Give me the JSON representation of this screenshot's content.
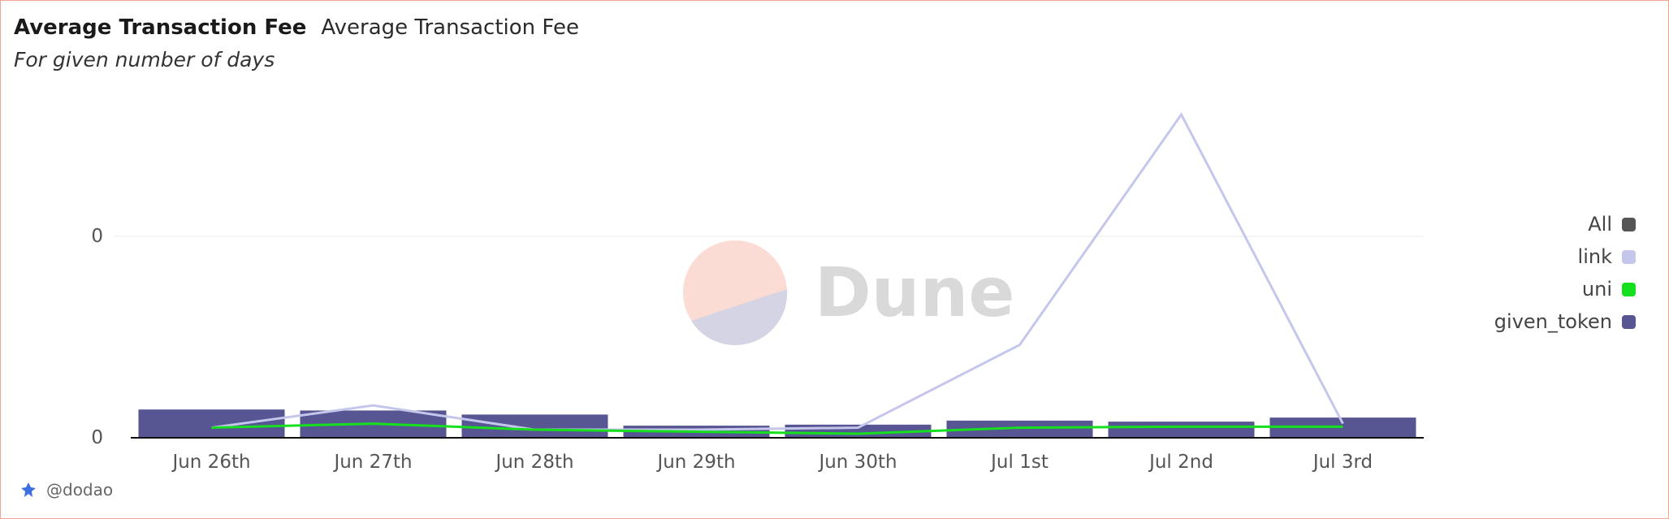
{
  "header": {
    "title": "Average Transaction Fee",
    "title_secondary": "Average Transaction Fee",
    "subtitle": "For given number of days"
  },
  "footer": {
    "handle": "@dodao"
  },
  "watermark": {
    "text": "Dune"
  },
  "legend": [
    {
      "label": "All",
      "color": "#555555"
    },
    {
      "label": "link",
      "color": "#c5c6ec"
    },
    {
      "label": "uni",
      "color": "#16e01e"
    },
    {
      "label": "given_token",
      "color": "#575693"
    }
  ],
  "chart_data": {
    "type": "bar",
    "categories": [
      "Jun 26th",
      "Jun 27th",
      "Jun 28th",
      "Jun 29th",
      "Jun 30th",
      "Jul 1st",
      "Jul 2nd",
      "Jul 3rd"
    ],
    "y_tick_labels": [
      "0",
      "0"
    ],
    "ylim": [
      0,
      1.6
    ],
    "legend_position": "right",
    "grid": true,
    "series": [
      {
        "name": "given_token",
        "type": "bar",
        "color": "#575693",
        "values": [
          0.14,
          0.135,
          0.115,
          0.06,
          0.065,
          0.085,
          0.08,
          0.1
        ]
      },
      {
        "name": "link",
        "type": "line",
        "color": "#c5c6ec",
        "values": [
          0.05,
          0.16,
          0.04,
          0.04,
          0.05,
          0.46,
          1.6,
          0.07
        ]
      },
      {
        "name": "uni",
        "type": "line",
        "color": "#16e01e",
        "values": [
          0.05,
          0.07,
          0.04,
          0.03,
          0.02,
          0.05,
          0.055,
          0.055
        ]
      }
    ]
  }
}
